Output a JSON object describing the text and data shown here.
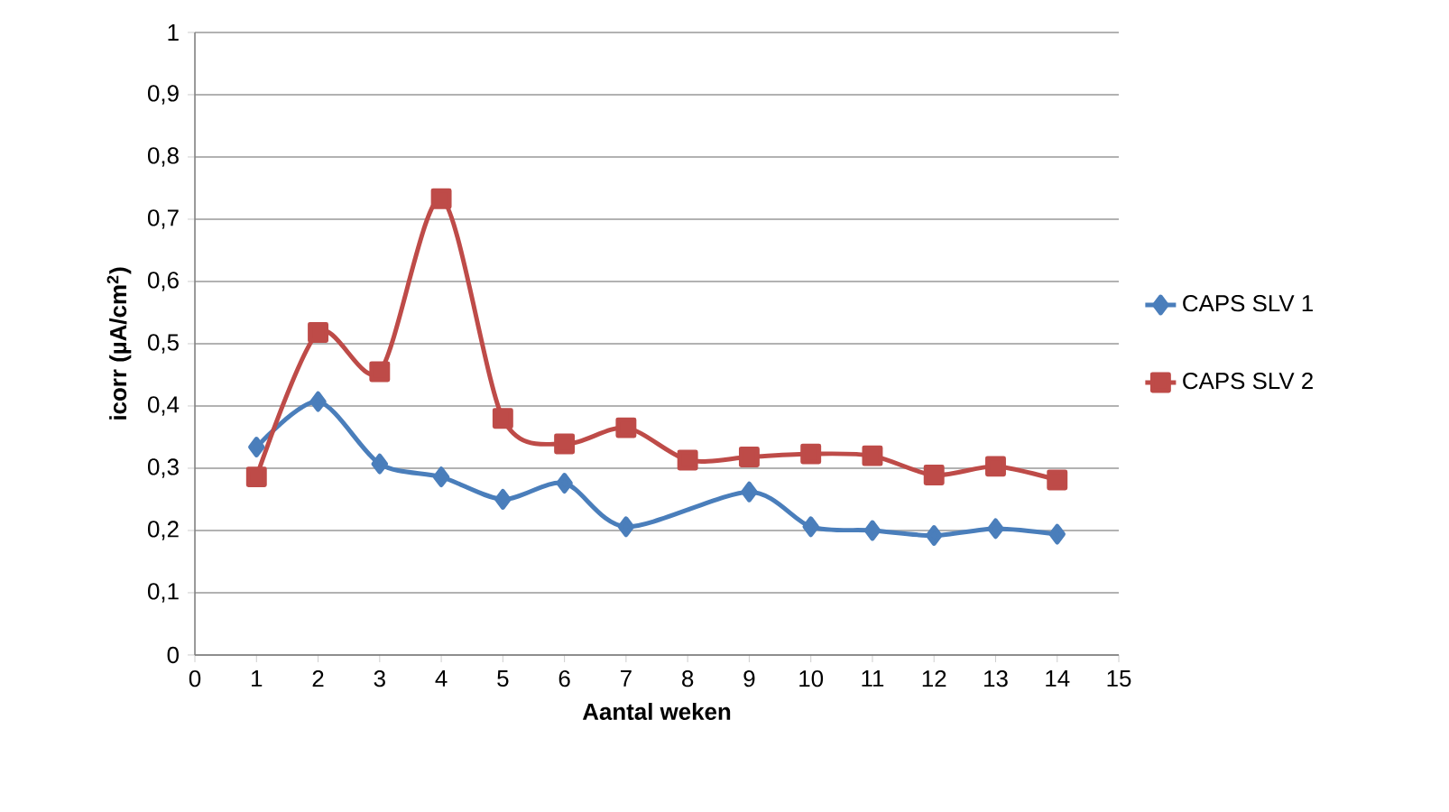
{
  "chart_data": {
    "type": "line",
    "xlabel": "Aantal weken",
    "ylabel": "icorr (µA/cm$^{2}$)",
    "x": [
      1,
      2,
      3,
      4,
      5,
      6,
      7,
      8,
      9,
      10,
      11,
      12,
      13,
      14
    ],
    "series": [
      {
        "name": "CAPS SLV 1",
        "color": "#4a7ebb",
        "marker": "diamond",
        "values": [
          0.334,
          0.407,
          0.307,
          0.286,
          0.25,
          0.276,
          0.206,
          null,
          0.262,
          0.206,
          0.2,
          0.192,
          0.203,
          0.194
        ]
      },
      {
        "name": "CAPS SLV 2",
        "color": "#be4b48",
        "marker": "square",
        "values": [
          0.286,
          0.518,
          0.455,
          0.733,
          0.38,
          0.339,
          0.365,
          0.313,
          0.318,
          0.323,
          0.32,
          0.289,
          0.303,
          0.281
        ]
      }
    ],
    "xlim": [
      0,
      15
    ],
    "xticks": [
      0,
      1,
      2,
      3,
      4,
      5,
      6,
      7,
      8,
      9,
      10,
      11,
      12,
      13,
      14,
      15
    ],
    "ylim": [
      0,
      1
    ],
    "yticks": [
      0,
      {
        "value": 0.1,
        "label": "0,1"
      },
      {
        "value": 0.2,
        "label": "0,2"
      },
      {
        "value": 0.3,
        "label": "0,3"
      },
      {
        "value": 0.4,
        "label": "0,4"
      },
      {
        "value": 0.5,
        "label": "0,5"
      },
      {
        "value": 0.6,
        "label": "0,6"
      },
      {
        "value": 0.7,
        "label": "0,7"
      },
      {
        "value": 0.8,
        "label": "0,8"
      },
      {
        "value": 0.9,
        "label": "0,9"
      },
      1
    ],
    "grid": "y",
    "legend": "right",
    "line_style": "solid"
  }
}
